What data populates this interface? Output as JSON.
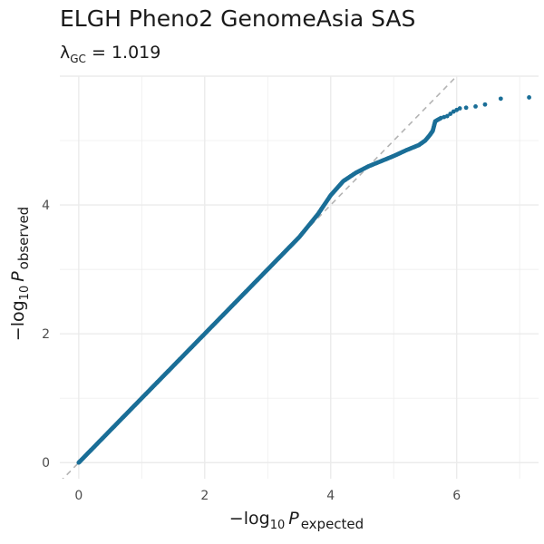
{
  "header": {
    "title": "ELGH Pheno2 GenomeAsia SAS",
    "lambda_symbol": "λ",
    "lambda_sub": "GC",
    "lambda_value": "= 1.019"
  },
  "chart_data": {
    "type": "scatter",
    "title": "ELGH Pheno2 GenomeAsia SAS",
    "subtitle": "λGC = 1.019",
    "xlabel": "−log10 P expected",
    "ylabel": "−log10 P observed",
    "xlabel_parts": {
      "prefix": "−log",
      "sub10": "10",
      "var": "P",
      "subscript": "expected"
    },
    "ylabel_parts": {
      "prefix": "−log",
      "sub10": "10",
      "var": "P",
      "subscript": "observed"
    },
    "xlim": [
      -0.3,
      7.3
    ],
    "ylim": [
      -0.25,
      6.0
    ],
    "x_ticks": [
      0,
      2,
      4,
      6
    ],
    "y_ticks": [
      0,
      2,
      4
    ],
    "grid": true,
    "point_color": "#1a6e97",
    "reference_line": {
      "style": "dashed",
      "color": "#b3b3b3",
      "slope": 1,
      "intercept": 0
    },
    "series": [
      {
        "points": [
          [
            0.0,
            0.0
          ],
          [
            0.5,
            0.5
          ],
          [
            1.0,
            1.0
          ],
          [
            1.5,
            1.5
          ],
          [
            2.0,
            2.0
          ],
          [
            2.5,
            2.5
          ],
          [
            3.0,
            3.0
          ],
          [
            3.5,
            3.5
          ],
          [
            3.8,
            3.86
          ],
          [
            4.0,
            4.15
          ],
          [
            4.2,
            4.37
          ],
          [
            4.4,
            4.5
          ],
          [
            4.6,
            4.6
          ],
          [
            4.8,
            4.68
          ],
          [
            5.0,
            4.76
          ],
          [
            5.2,
            4.85
          ],
          [
            5.4,
            4.93
          ],
          [
            5.5,
            5.0
          ],
          [
            5.57,
            5.08
          ],
          [
            5.62,
            5.15
          ],
          [
            5.66,
            5.3
          ],
          [
            5.75,
            5.35
          ],
          [
            5.85,
            5.38
          ],
          [
            5.95,
            5.45
          ],
          [
            6.05,
            5.5
          ],
          [
            6.15,
            5.51
          ],
          [
            6.3,
            5.53
          ],
          [
            6.45,
            5.56
          ],
          [
            6.7,
            5.65
          ],
          [
            7.15,
            5.67
          ]
        ]
      }
    ]
  }
}
